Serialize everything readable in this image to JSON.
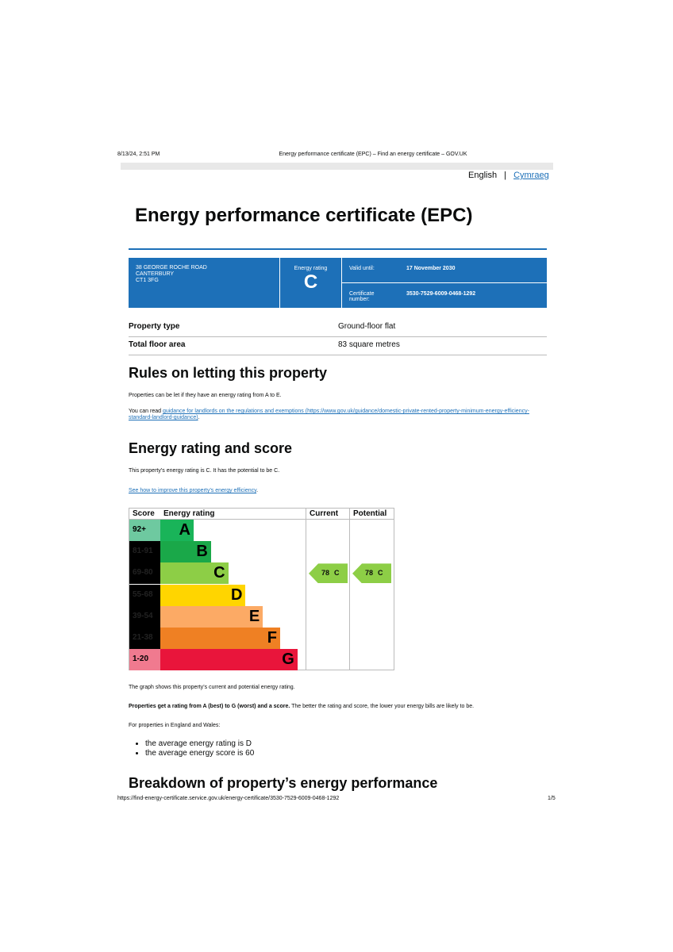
{
  "browser": {
    "timestamp": "8/13/24, 2:51 PM",
    "page_title": "Energy performance certificate (EPC) – Find an energy certificate – GOV.UK",
    "url": "https://find-energy-certificate.service.gov.uk/energy-certificate/3530-7529-6009-0468-1292",
    "page_number": "1/5"
  },
  "language": {
    "current": "English",
    "separator": "|",
    "other": "Cymraeg"
  },
  "title": "Energy performance certificate (EPC)",
  "summary": {
    "address": [
      "38 GEORGE ROCHE ROAD",
      "CANTERBURY",
      "CT1 3FG"
    ],
    "rating_label": "Energy rating",
    "rating": "C",
    "valid_label": "Valid until:",
    "valid_until": "17 November 2030",
    "certificate_label": "Certificate number:",
    "certificate_number": "3530-7529-6009-0468-1292"
  },
  "property": {
    "rows": [
      [
        "Property type",
        "Ground-floor flat"
      ],
      [
        "Total floor area",
        "83 square metres"
      ]
    ]
  },
  "letting": {
    "heading": "Rules on letting this property",
    "text": "Properties can be let if they have an energy rating from A to E.",
    "read_prefix": "You can read ",
    "read_link": "guidance for landlords on the regulations and exemptions (https://www.gov.uk/guidance/domestic-private-rented-property-minimum-energy-efficiency-standard-landlord-guidance)",
    "read_suffix": "."
  },
  "rating_section": {
    "heading": "Energy rating and score",
    "text": "This property’s energy rating is C. It has the potential to be C.",
    "link": "See how to improve this property’s energy efficiency",
    "link_suffix": "."
  },
  "rating_chart": {
    "headers": [
      "Score",
      "Energy rating",
      "Current",
      "Potential"
    ],
    "bands": [
      {
        "score": "92+",
        "letter": "A",
        "color": "#19b459",
        "score_bg": "#6ec9a0"
      },
      {
        "score": "81-91",
        "letter": "B",
        "color": "#1aa849",
        "score_bg": "#000"
      },
      {
        "score": "69-80",
        "letter": "C",
        "color": "#8dce46",
        "score_bg": "#000"
      },
      {
        "score": "55-68",
        "letter": "D",
        "color": "#ffd500",
        "score_bg": "#000"
      },
      {
        "score": "39-54",
        "letter": "E",
        "color": "#fcaa65",
        "score_bg": "#000"
      },
      {
        "score": "21-38",
        "letter": "F",
        "color": "#ef8023",
        "score_bg": "#000"
      },
      {
        "score": "1-20",
        "letter": "G",
        "color": "#e9153b",
        "score_bg": "#f07a8f"
      }
    ],
    "current": {
      "score": 78,
      "band": "C"
    },
    "potential": {
      "score": 78,
      "band": "C"
    }
  },
  "after_chart": {
    "caption": "The graph shows this property’s current and potential energy rating.",
    "bold": "Properties get a rating from A (best) to G (worst) and a score.",
    "rest": " The better the rating and score, the lower your energy bills are likely to be.",
    "intro": "For properties in England and Wales:",
    "bullets": [
      "the average energy rating is D",
      "the average energy score is 60"
    ]
  },
  "breakdown_heading": "Breakdown of property’s energy performance"
}
